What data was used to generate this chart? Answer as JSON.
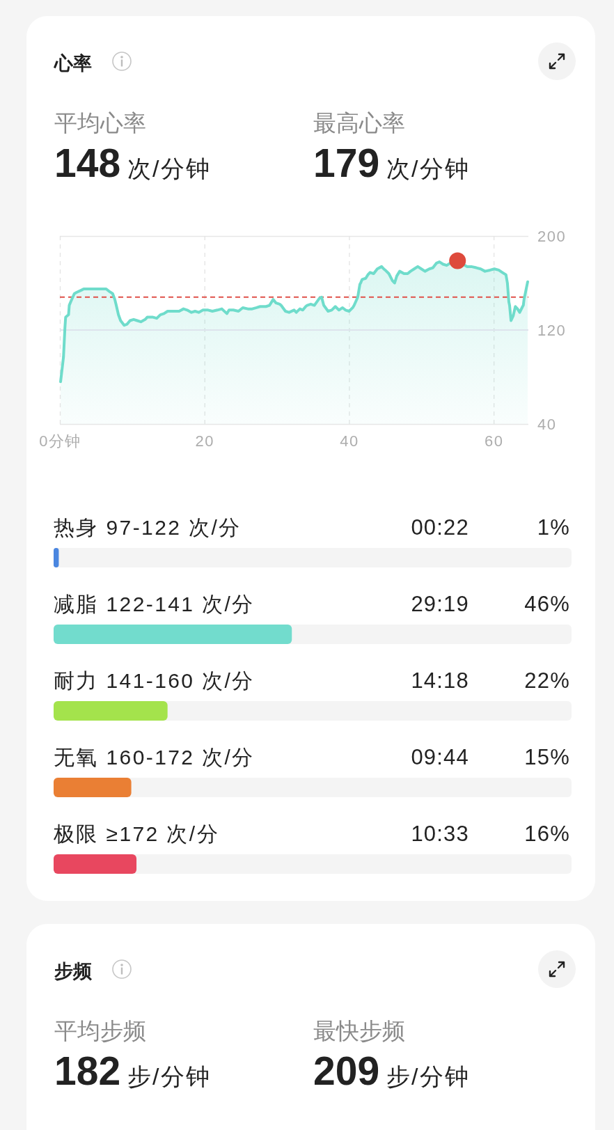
{
  "chart_data": [
    {
      "type": "line",
      "title": "心率",
      "annotations": [
        "平均心率",
        "148",
        "次/分钟",
        "最高心率",
        "179",
        "次/分钟"
      ],
      "xlim": [
        0,
        64.8
      ],
      "xticks": [
        {
          "value": 0,
          "label": "0分钟"
        },
        20,
        40,
        60
      ],
      "ylim": [
        40,
        200
      ],
      "yticks": [
        40,
        120,
        200
      ],
      "grid": true,
      "ref_lines": [
        {
          "axis": "y",
          "value": 148,
          "color": "#e0514a",
          "line_style": "dashed"
        },
        {
          "axis": "y",
          "value": 120,
          "color": "#dde3ec",
          "line_style": "solid"
        }
      ],
      "x": [
        0.1,
        0.5,
        0.7,
        0.8,
        1.2,
        1.3,
        1.5,
        2.0,
        2.3,
        3.0,
        3.3,
        5.1,
        6.4,
        6.8,
        7.3,
        7.6,
        7.8,
        8.1,
        8.4,
        8.9,
        9.3,
        9.7,
        10.2,
        10.7,
        11.2,
        11.8,
        12.1,
        12.8,
        13.4,
        13.9,
        14.4,
        14.9,
        15.7,
        16.5,
        17.1,
        17.6,
        18.2,
        18.7,
        19.2,
        19.8,
        20.5,
        21.1,
        21.8,
        22.4,
        23.1,
        23.4,
        24.0,
        24.7,
        25.3,
        26.0,
        26.6,
        27.2,
        27.7,
        28.5,
        29.0,
        29.5,
        29.9,
        30.4,
        30.6,
        31.2,
        31.7,
        32.4,
        32.7,
        33.2,
        33.6,
        34.0,
        34.2,
        34.7,
        35.2,
        35.9,
        36.2,
        36.5,
        37.1,
        37.6,
        38.1,
        38.6,
        39.1,
        39.5,
        40.0,
        40.5,
        40.7,
        41.2,
        41.5,
        41.6,
        41.8,
        42.3,
        42.6,
        42.9,
        43.4,
        43.9,
        44.5,
        44.8,
        45.0,
        45.5,
        46.0,
        46.3,
        46.6,
        47.0,
        47.6,
        48.1,
        48.5,
        49.0,
        49.5,
        50.0,
        50.5,
        51.1,
        51.6,
        52.1,
        52.5,
        53.0,
        53.5,
        54.0,
        55.0,
        56.3,
        56.9,
        57.6,
        58.2,
        58.8,
        59.5,
        60.1,
        60.7,
        61.2,
        61.7,
        61.9,
        62.1,
        62.2,
        62.4,
        62.7,
        63.0,
        63.3,
        63.6,
        64.0,
        64.1,
        64.2,
        64.7
      ],
      "series": [
        {
          "type": "area",
          "color": "#6fdccb",
          "values": [
            76,
            97,
            122,
            131,
            133,
            141,
            144,
            151,
            152,
            154,
            155,
            155,
            155,
            153,
            151,
            146,
            141,
            133,
            128,
            124,
            125,
            128,
            129,
            128,
            127,
            129,
            131,
            131,
            130,
            133,
            134,
            136,
            136,
            136,
            138,
            137,
            135,
            136,
            135,
            137,
            137,
            136,
            137,
            138,
            134,
            137,
            137,
            136,
            139,
            138,
            138,
            139,
            140,
            140,
            141,
            146,
            143,
            142,
            141,
            136,
            135,
            137,
            135,
            138,
            137,
            140,
            141,
            142,
            141,
            147,
            148,
            141,
            136,
            137,
            140,
            137,
            139,
            137,
            136,
            139,
            141,
            148,
            159,
            160,
            163,
            164,
            167,
            169,
            168,
            172,
            174,
            172,
            171,
            168,
            162,
            160,
            166,
            170,
            168,
            168,
            170,
            172,
            174,
            172,
            170,
            172,
            173,
            177,
            178,
            176,
            175,
            177,
            179,
            174,
            174,
            173,
            172,
            170,
            171,
            172,
            171,
            169,
            167,
            160,
            144,
            141,
            128,
            132,
            140,
            138,
            135,
            140,
            141,
            146,
            161
          ]
        },
        {
          "type": "scatter",
          "color": "#de4a3c",
          "marker": "circle",
          "x": [
            55.0
          ],
          "values": [
            179
          ]
        }
      ]
    },
    {
      "type": "bar",
      "orientation": "horizontal",
      "categories": [
        "热身 97-122 次/分",
        "减脂 122-141 次/分",
        "耐力 141-160 次/分",
        "无氧 160-172 次/分",
        "极限 ≥172 次/分"
      ],
      "values": [
        1,
        46,
        22,
        15,
        16
      ],
      "colors": [
        "#4a86e0",
        "#72dccd",
        "#a4e34c",
        "#ea7f34",
        "#e8475f"
      ],
      "xlim": [
        0,
        100
      ],
      "value_labels": [
        "1%",
        "46%",
        "22%",
        "15%",
        "16%"
      ],
      "tick_labels": "y",
      "annotations": [
        "00:22",
        "29:19",
        "14:18",
        "09:44",
        "10:33"
      ]
    },
    {
      "type": "other",
      "title": "步频",
      "annotations": [
        "平均步频",
        "182",
        "步/分钟",
        "最快步频",
        "209",
        "步/分钟"
      ]
    }
  ]
}
